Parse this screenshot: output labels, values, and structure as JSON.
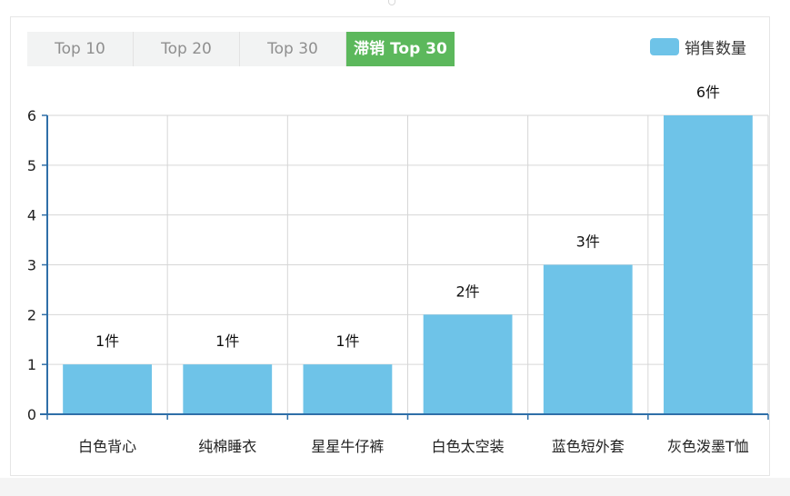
{
  "tabs": [
    {
      "label": "Top 10",
      "active": false
    },
    {
      "label": "Top 20",
      "active": false
    },
    {
      "label": "Top 30",
      "active": false
    },
    {
      "label": "滞销 Top 30",
      "active": true
    }
  ],
  "colors": {
    "bar": "#6ec3e8",
    "active_tab": "#5cb85c",
    "axis": "#2f6fa8",
    "grid": "#d6d6d6"
  },
  "chart_data": {
    "type": "bar",
    "categories": [
      "白色背心",
      "纯棉睡衣",
      "星星牛仔裤",
      "白色太空装",
      "蓝色短外套",
      "灰色泼墨T恤"
    ],
    "series": [
      {
        "name": "销售数量",
        "values": [
          1,
          1,
          1,
          2,
          3,
          6
        ]
      }
    ],
    "data_labels": [
      "1件",
      "1件",
      "1件",
      "2件",
      "3件",
      "6件"
    ],
    "yticks": [
      "0",
      "1",
      "2",
      "3",
      "4",
      "5",
      "6"
    ],
    "ylim": [
      0,
      6
    ],
    "grid": true,
    "legend_position": "top-right"
  }
}
